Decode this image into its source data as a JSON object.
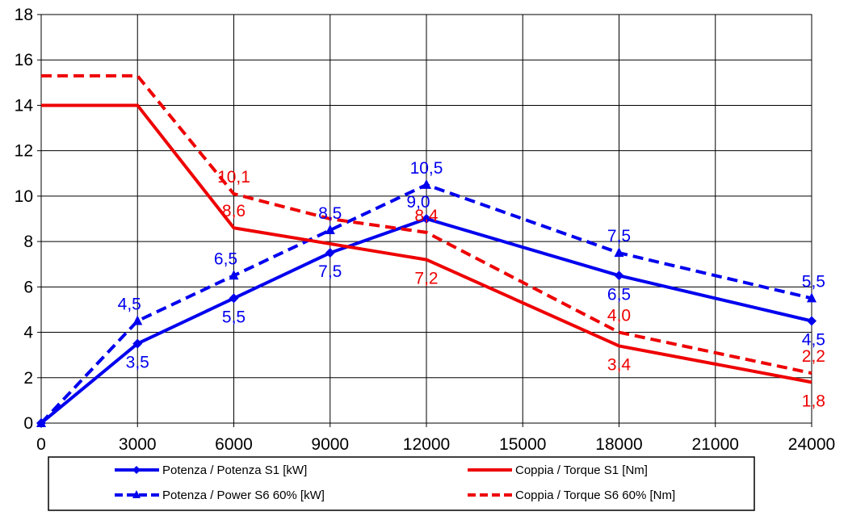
{
  "chart_data": {
    "type": "line",
    "x": [
      0,
      3000,
      6000,
      9000,
      12000,
      18000,
      24000
    ],
    "x_ticks": [
      "0",
      "3000",
      "6000",
      "9000",
      "12000",
      "15000",
      "18000",
      "21000",
      "24000"
    ],
    "y_ticks": [
      "0",
      "2",
      "4",
      "6",
      "8",
      "10",
      "12",
      "14",
      "16",
      "18"
    ],
    "xlim": [
      0,
      24000
    ],
    "ylim": [
      0,
      18
    ],
    "grid": true,
    "legend_position": "bottom",
    "series": [
      {
        "name": "Potenza / Potenza S1 [kW]",
        "color": "#0000ee",
        "dash": "solid",
        "marker": "diamond",
        "points": [
          [
            0,
            0
          ],
          [
            3000,
            3.5
          ],
          [
            6000,
            5.5
          ],
          [
            9000,
            7.5
          ],
          [
            12000,
            9.0
          ],
          [
            18000,
            6.5
          ],
          [
            24000,
            4.5
          ]
        ],
        "labels": [
          {
            "x": 3000,
            "text": "3,5",
            "pos": "below"
          },
          {
            "x": 6000,
            "text": "5,5",
            "pos": "below"
          },
          {
            "x": 9000,
            "text": "7,5",
            "pos": "below"
          },
          {
            "x": 12000,
            "text": "9,0",
            "pos": "above-left"
          },
          {
            "x": 18000,
            "text": "6,5",
            "pos": "below"
          },
          {
            "x": 24000,
            "text": "4,5",
            "pos": "below"
          }
        ]
      },
      {
        "name": "Potenza / Power S6 60% [kW]",
        "color": "#0000ee",
        "dash": "dashed",
        "marker": "triangle",
        "points": [
          [
            0,
            0
          ],
          [
            3000,
            4.5
          ],
          [
            6000,
            6.5
          ],
          [
            9000,
            8.5
          ],
          [
            12000,
            10.5
          ],
          [
            18000,
            7.5
          ],
          [
            24000,
            5.5
          ]
        ],
        "labels": [
          {
            "x": 3000,
            "text": "4,5",
            "pos": "above-left"
          },
          {
            "x": 6000,
            "text": "6,5",
            "pos": "above-left"
          },
          {
            "x": 9000,
            "text": "8,5",
            "pos": "above"
          },
          {
            "x": 12000,
            "text": "10,5",
            "pos": "above"
          },
          {
            "x": 18000,
            "text": "7,5",
            "pos": "above"
          },
          {
            "x": 24000,
            "text": "5,5",
            "pos": "above"
          }
        ]
      },
      {
        "name": "Coppia / Torque S1 [Nm]",
        "color": "#ee0000",
        "dash": "solid",
        "marker": "none",
        "points": [
          [
            0,
            14.0
          ],
          [
            3000,
            14.0
          ],
          [
            6000,
            8.6
          ],
          [
            9000,
            7.9
          ],
          [
            12000,
            7.2
          ],
          [
            18000,
            3.4
          ],
          [
            24000,
            1.8
          ]
        ],
        "labels": [
          {
            "x": 6000,
            "text": "8,6",
            "pos": "above"
          },
          {
            "x": 12000,
            "text": "7,2",
            "pos": "below"
          },
          {
            "x": 18000,
            "text": "3,4",
            "pos": "below"
          },
          {
            "x": 24000,
            "text": "1,8",
            "pos": "below"
          }
        ]
      },
      {
        "name": "Coppia / Torque S6 60% [Nm]",
        "color": "#ee0000",
        "dash": "dashed",
        "marker": "none",
        "points": [
          [
            0,
            15.3
          ],
          [
            3000,
            15.3
          ],
          [
            6000,
            10.1
          ],
          [
            9000,
            9.0
          ],
          [
            12000,
            8.4
          ],
          [
            18000,
            4.0
          ],
          [
            24000,
            2.2
          ]
        ],
        "labels": [
          {
            "x": 6000,
            "text": "10,1",
            "pos": "above"
          },
          {
            "x": 12000,
            "text": "8,4",
            "pos": "above"
          },
          {
            "x": 18000,
            "text": "4,0",
            "pos": "above"
          },
          {
            "x": 24000,
            "text": "2,2",
            "pos": "above"
          }
        ]
      }
    ]
  }
}
